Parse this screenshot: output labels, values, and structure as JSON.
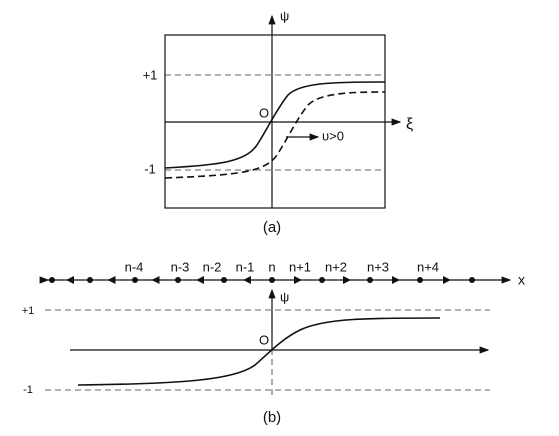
{
  "panel_a": {
    "psi": "ψ",
    "plus_one": "+1",
    "minus_one": "-1",
    "origin": "O",
    "xi": "ξ",
    "velocity": "υ>0",
    "caption": "(a)"
  },
  "panel_b": {
    "sites": [
      "n-4",
      "n-3",
      "n-2",
      "n-1",
      "n",
      "n+1",
      "n+2",
      "n+3",
      "n+4"
    ],
    "x": "x",
    "psi": "ψ",
    "plus_one": "+1",
    "minus_one": "-1",
    "origin": "O",
    "caption": "(b)"
  }
}
